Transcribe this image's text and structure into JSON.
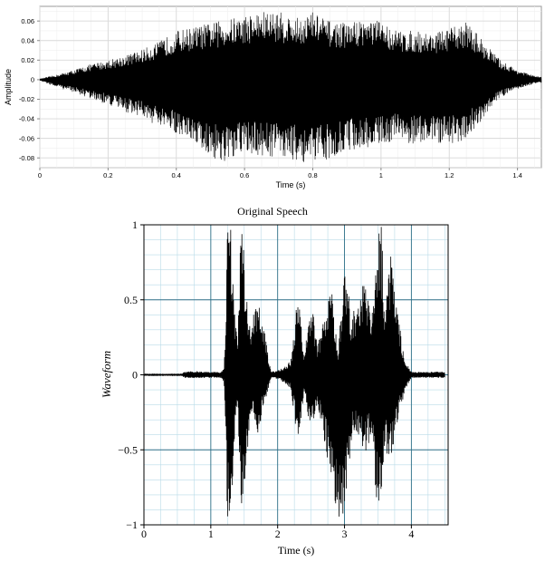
{
  "chart_data": [
    {
      "type": "line",
      "title": "",
      "xlabel": "Time (s)",
      "ylabel": "Amplitude",
      "xlim": [
        0,
        1.47
      ],
      "ylim": [
        -0.09,
        0.075
      ],
      "xticks": [
        0,
        0.2,
        0.4,
        0.6,
        0.8,
        1,
        1.2,
        1.4
      ],
      "xtick_labels": [
        "0",
        "0.2",
        "0.4",
        "0.6",
        "0.8",
        "1",
        "1.2",
        "1.4"
      ],
      "yticks": [
        0.06,
        0.04,
        0.02,
        0,
        -0.02,
        -0.04,
        -0.06,
        -0.08
      ],
      "ytick_labels": [
        "0.06",
        "0.04",
        "0.02",
        "0",
        "-0.02",
        "-0.04",
        "-0.06",
        "-0.08"
      ],
      "grid": true,
      "series": [
        {
          "color": "#000000",
          "envelope": {
            "x": [
              0,
              0.05,
              0.1,
              0.15,
              0.2,
              0.25,
              0.3,
              0.35,
              0.4,
              0.45,
              0.5,
              0.55,
              0.6,
              0.65,
              0.7,
              0.75,
              0.8,
              0.85,
              0.9,
              0.95,
              1.0,
              1.05,
              1.1,
              1.15,
              1.2,
              1.25,
              1.3,
              1.35,
              1.4,
              1.45,
              1.47
            ],
            "upper": [
              0.001,
              0.005,
              0.01,
              0.016,
              0.02,
              0.025,
              0.031,
              0.039,
              0.05,
              0.054,
              0.058,
              0.062,
              0.066,
              0.07,
              0.07,
              0.063,
              0.07,
              0.06,
              0.058,
              0.063,
              0.06,
              0.05,
              0.05,
              0.048,
              0.052,
              0.06,
              0.04,
              0.02,
              0.01,
              0.004,
              0.003
            ],
            "lower": [
              -0.001,
              -0.008,
              -0.013,
              -0.02,
              -0.026,
              -0.033,
              -0.038,
              -0.05,
              -0.055,
              -0.063,
              -0.08,
              -0.088,
              -0.075,
              -0.08,
              -0.078,
              -0.083,
              -0.088,
              -0.08,
              -0.073,
              -0.07,
              -0.066,
              -0.062,
              -0.067,
              -0.064,
              -0.068,
              -0.06,
              -0.04,
              -0.018,
              -0.01,
              -0.004,
              -0.003
            ]
          }
        }
      ]
    },
    {
      "type": "line",
      "title": "Original Speech",
      "xlabel": "Time (s)",
      "ylabel": "Waveform",
      "xlim": [
        0,
        4.55
      ],
      "ylim": [
        -1,
        1
      ],
      "xticks": [
        0,
        1,
        2,
        3,
        4
      ],
      "xtick_labels": [
        "0",
        "1",
        "2",
        "3",
        "4"
      ],
      "yticks": [
        1,
        0.5,
        0,
        -0.5,
        -1
      ],
      "ytick_labels": [
        "1",
        "0.5",
        "0",
        "−0.5",
        "−1"
      ],
      "grid": true,
      "series": [
        {
          "color": "#000000",
          "envelope": {
            "x": [
              0,
              0.55,
              0.6,
              0.75,
              0.95,
              1.15,
              1.2,
              1.25,
              1.3,
              1.35,
              1.4,
              1.45,
              1.5,
              1.55,
              1.6,
              1.7,
              1.8,
              1.9,
              2.0,
              2.1,
              2.2,
              2.3,
              2.4,
              2.5,
              2.6,
              2.7,
              2.8,
              2.9,
              3.0,
              3.1,
              3.2,
              3.3,
              3.4,
              3.5,
              3.55,
              3.6,
              3.7,
              3.8,
              3.9,
              4.0,
              4.5
            ],
            "upper": [
              0.003,
              0.003,
              0.02,
              0.025,
              0.02,
              0.02,
              0.04,
              0.98,
              1.0,
              0.5,
              0.2,
              1.0,
              0.8,
              0.5,
              0.35,
              0.5,
              0.3,
              0.02,
              0.03,
              0.05,
              0.1,
              0.55,
              0.15,
              0.5,
              0.2,
              0.38,
              0.6,
              0.15,
              0.75,
              0.4,
              0.5,
              0.7,
              0.35,
              0.98,
              1.0,
              0.5,
              0.85,
              0.4,
              0.1,
              0.02,
              0.02
            ],
            "lower": [
              -0.003,
              -0.003,
              -0.02,
              -0.022,
              -0.02,
              -0.02,
              -0.05,
              -0.98,
              -0.9,
              -0.5,
              -0.15,
              -0.95,
              -0.75,
              -0.5,
              -0.25,
              -0.4,
              -0.2,
              -0.02,
              -0.03,
              -0.05,
              -0.1,
              -0.45,
              -0.12,
              -0.4,
              -0.2,
              -0.45,
              -0.7,
              -0.95,
              -0.98,
              -0.45,
              -0.4,
              -0.55,
              -0.4,
              -1.0,
              -0.95,
              -0.5,
              -0.6,
              -0.3,
              -0.12,
              -0.02,
              -0.02
            ]
          }
        }
      ]
    }
  ]
}
